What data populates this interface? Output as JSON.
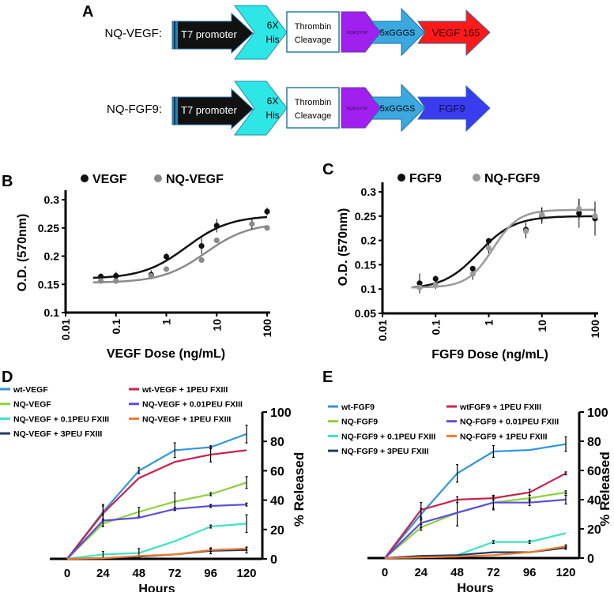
{
  "panels": {
    "a": "A",
    "b": "B",
    "c": "C",
    "d": "D",
    "e": "E"
  },
  "constructs": [
    {
      "name": "NQ-VEGF:",
      "promoter": "T7 promoter",
      "his_1": "6X",
      "his_2": "His",
      "cleavage_1": "Thrombin",
      "cleavage_2": "Cleavage",
      "tag": "NQEQVSP",
      "linker": "5xGGGS",
      "protein": "VEGF 165",
      "protein_color": "#ff1a1a",
      "protein_text_color": "#3a0000"
    },
    {
      "name": "NQ-FGF9:",
      "promoter": "T7 promoter",
      "his_1": "6X",
      "his_2": "His",
      "cleavage_1": "Thrombin",
      "cleavage_2": "Cleavage",
      "tag": "NQEQVSP",
      "linker": "5xGGGS",
      "protein": "FGF9",
      "protein_color": "#3b3bef",
      "protein_text_color": "#10104a"
    }
  ],
  "chart_data": [
    {
      "id": "B",
      "type": "scatter",
      "xlabel": "VEGF Dose (ng/mL)",
      "ylabel": "O.D. (570nm)",
      "xscale": "log",
      "xlim": [
        0.01,
        100
      ],
      "ylim": [
        0.1,
        0.3
      ],
      "xticks": [
        "0.01",
        "0.1",
        "1",
        "10",
        "100"
      ],
      "yticks": [
        "0.1",
        "0.15",
        "0.2",
        "0.25",
        "0.3"
      ],
      "legend_placement": "top",
      "series": [
        {
          "name": "VEGF",
          "color": "#111111",
          "x": [
            0.05,
            0.1,
            0.5,
            1,
            5,
            10,
            100
          ],
          "y": [
            0.164,
            0.165,
            0.167,
            0.199,
            0.218,
            0.254,
            0.279
          ],
          "err": [
            0.004,
            0.007,
            0.008,
            0.006,
            0.014,
            0.012,
            0.007
          ],
          "fit": {
            "bottom": 0.16,
            "top": 0.272,
            "ec50": 2.5,
            "hill": 1.0
          }
        },
        {
          "name": "NQ-VEGF",
          "color": "#8a8a8a",
          "x": [
            0.05,
            0.1,
            0.5,
            1,
            5,
            10,
            50,
            100
          ],
          "y": [
            0.156,
            0.156,
            0.165,
            0.177,
            0.193,
            0.228,
            0.257,
            0.25
          ],
          "err": [
            0.003,
            0.005,
            0.004,
            0.002,
            0.002,
            0.003,
            0.009,
            0.003
          ],
          "fit": {
            "bottom": 0.153,
            "top": 0.259,
            "ec50": 6,
            "hill": 1.0
          }
        }
      ]
    },
    {
      "id": "C",
      "type": "scatter",
      "xlabel": "FGF9 Dose (ng/mL)",
      "ylabel": "O.D. (570nm)",
      "xscale": "log",
      "xlim": [
        0.01,
        100
      ],
      "ylim": [
        0.05,
        0.3
      ],
      "xticks": [
        "0.01",
        "0.1",
        "1",
        "10",
        "100"
      ],
      "yticks": [
        "0.05",
        "0.1",
        "0.15",
        "0.2",
        "0.25",
        "0.3"
      ],
      "legend_placement": "top",
      "series": [
        {
          "name": "FGF9",
          "color": "#111111",
          "x": [
            0.05,
            0.1,
            0.5,
            1,
            5,
            10,
            50,
            100
          ],
          "y": [
            0.112,
            0.121,
            0.142,
            0.199,
            0.222,
            0.251,
            0.256,
            0.245
          ],
          "err": [
            0.02,
            0.007,
            0.005,
            0.006,
            0.015,
            0.017,
            0.03,
            0.035
          ],
          "fit": {
            "bottom": 0.1,
            "top": 0.25,
            "ec50": 0.65,
            "hill": 1.3
          }
        },
        {
          "name": "NQ-FGF9",
          "color": "#9a9a9a",
          "x": [
            0.05,
            0.1,
            0.5,
            1,
            5,
            10,
            50,
            100
          ],
          "y": [
            0.103,
            0.108,
            0.131,
            0.184,
            0.219,
            0.253,
            0.265,
            0.25
          ],
          "err": [
            0.012,
            0.008,
            0.012,
            0.01,
            0.015,
            0.015,
            0.02,
            0.03
          ],
          "fit": {
            "bottom": 0.103,
            "top": 0.263,
            "ec50": 1.2,
            "hill": 1.8
          }
        }
      ]
    },
    {
      "id": "D",
      "type": "line",
      "xlabel": "Hours",
      "ylabel": "% Released",
      "x": [
        0,
        24,
        48,
        72,
        96,
        120
      ],
      "ylim": [
        0,
        100
      ],
      "xticks": [
        "0",
        "24",
        "48",
        "72",
        "96",
        "120"
      ],
      "yticks": [
        "0",
        "20",
        "40",
        "60",
        "80",
        "100"
      ],
      "legend_placement": "top-left",
      "series": [
        {
          "name": "wt-VEGF",
          "color": "#2f95e0",
          "values": [
            0,
            32,
            60,
            74,
            76,
            85
          ],
          "err": [
            0,
            5,
            2,
            5,
            1,
            6
          ]
        },
        {
          "name": "NQ-VEGF",
          "color": "#8fd13a",
          "values": [
            0,
            24,
            32,
            39,
            44,
            52
          ],
          "err": [
            0,
            2,
            3,
            6,
            1,
            4
          ]
        },
        {
          "name": "NQ-VEGF + 0.1PEU FXIII",
          "color": "#3fe3c3",
          "values": [
            0,
            3,
            4,
            12,
            22,
            24
          ],
          "err": [
            0,
            2,
            3,
            0,
            1,
            6
          ]
        },
        {
          "name": "NQ-VEGF + 3PEU FXIII",
          "color": "#1f3a66",
          "values": [
            0,
            0.5,
            1.5,
            3,
            5.5,
            6
          ],
          "err": [
            0,
            0,
            0,
            0,
            2,
            2
          ]
        },
        {
          "name": "wt-VEGF + 1PEU FXIII",
          "color": "#c8234a",
          "values": [
            0,
            31,
            55,
            66,
            71,
            74
          ],
          "err": [
            0,
            5,
            0,
            0,
            5,
            0
          ]
        },
        {
          "name": "NQ-VEGF + 0.01PEU FXIII",
          "color": "#5a4de0",
          "values": [
            0,
            26,
            28,
            34,
            36,
            37
          ],
          "err": [
            0,
            4,
            0,
            1,
            1,
            1
          ]
        },
        {
          "name": "NQ-VEGF + 1PEU FXIII",
          "color": "#f07a2a",
          "values": [
            0,
            0.5,
            2,
            3,
            6,
            7
          ],
          "err": [
            0,
            0,
            0,
            0,
            1,
            1
          ]
        }
      ]
    },
    {
      "id": "E",
      "type": "line",
      "xlabel": "Hours",
      "ylabel": "% Released",
      "x": [
        0,
        24,
        48,
        72,
        96,
        120
      ],
      "ylim": [
        0,
        100
      ],
      "xticks": [
        "0",
        "24",
        "48",
        "72",
        "96",
        "120"
      ],
      "yticks": [
        "0",
        "20",
        "40",
        "60",
        "80",
        "100"
      ],
      "legend_placement": "top-left",
      "series": [
        {
          "name": "wt-FGF9",
          "color": "#2f95e0",
          "values": [
            0,
            30,
            58,
            73,
            74,
            78
          ],
          "err": [
            0,
            4,
            6,
            4,
            0,
            5
          ]
        },
        {
          "name": "NQ-FGF9",
          "color": "#8fd13a",
          "values": [
            0,
            21,
            31,
            38,
            41,
            45
          ],
          "err": [
            0,
            2,
            9,
            5,
            2,
            1
          ]
        },
        {
          "name": "NQ-FGF9 + 0.1PEU FXIII",
          "color": "#3fe3c3",
          "values": [
            0,
            1,
            2,
            11,
            11,
            17
          ],
          "err": [
            0,
            0,
            0,
            1,
            1,
            0
          ]
        },
        {
          "name": "NQ-FGF9 + 3PEU FXIII",
          "color": "#1f3a66",
          "values": [
            0,
            1.5,
            2,
            4,
            4,
            7
          ],
          "err": [
            0,
            0,
            0,
            0,
            0,
            1
          ]
        },
        {
          "name": "wtFGF9 + 1PEU FXIII",
          "color": "#c8234a",
          "values": [
            0,
            33,
            40,
            41,
            45,
            58
          ],
          "err": [
            0,
            5,
            2,
            1,
            2,
            1
          ]
        },
        {
          "name": "NQ-FGF9 + 0.01PEU FXIII",
          "color": "#5a4de0",
          "values": [
            0,
            24,
            31,
            38,
            38,
            40
          ],
          "err": [
            0,
            3,
            0,
            4,
            2,
            3
          ]
        },
        {
          "name": "NQ-FGF9 + 1PEU FXIII",
          "color": "#f07a2a",
          "values": [
            0,
            0.5,
            1,
            2,
            4,
            8
          ],
          "err": [
            0,
            0,
            0,
            0,
            0,
            1
          ]
        }
      ]
    }
  ]
}
